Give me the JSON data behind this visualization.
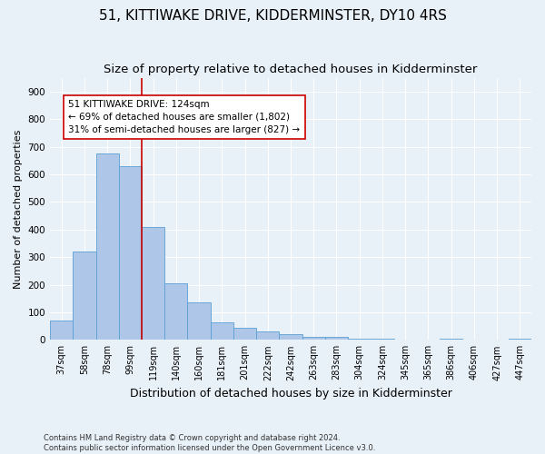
{
  "title": "51, KITTIWAKE DRIVE, KIDDERMINSTER, DY10 4RS",
  "subtitle": "Size of property relative to detached houses in Kidderminster",
  "xlabel": "Distribution of detached houses by size in Kidderminster",
  "ylabel": "Number of detached properties",
  "footer": "Contains HM Land Registry data © Crown copyright and database right 2024.\nContains public sector information licensed under the Open Government Licence v3.0.",
  "categories": [
    "37sqm",
    "58sqm",
    "78sqm",
    "99sqm",
    "119sqm",
    "140sqm",
    "160sqm",
    "181sqm",
    "201sqm",
    "222sqm",
    "242sqm",
    "263sqm",
    "283sqm",
    "304sqm",
    "324sqm",
    "345sqm",
    "365sqm",
    "386sqm",
    "406sqm",
    "427sqm",
    "447sqm"
  ],
  "values": [
    70,
    320,
    675,
    630,
    410,
    205,
    135,
    65,
    45,
    30,
    20,
    10,
    10,
    5,
    5,
    0,
    0,
    5,
    0,
    0,
    5
  ],
  "bar_color": "#aec6e8",
  "bar_edge_color": "#5a9fd4",
  "vline_idx": 4,
  "vline_color": "#cc0000",
  "annotation_text": "51 KITTIWAKE DRIVE: 124sqm\n← 69% of detached houses are smaller (1,802)\n31% of semi-detached houses are larger (827) →",
  "annotation_box_color": "#ffffff",
  "annotation_box_edge": "#cc0000",
  "ylim": [
    0,
    950
  ],
  "yticks": [
    0,
    100,
    200,
    300,
    400,
    500,
    600,
    700,
    800,
    900
  ],
  "background_color": "#e8f0f8",
  "title_fontsize": 11,
  "subtitle_fontsize": 9.5,
  "xlabel_fontsize": 9,
  "ylabel_fontsize": 8
}
